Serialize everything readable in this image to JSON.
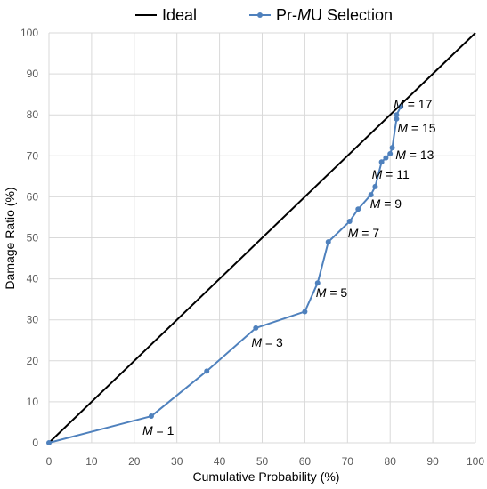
{
  "chart_data": {
    "type": "line",
    "xlabel": "Cumulative Probability (%)",
    "ylabel": "Damage Ratio (%)",
    "xlim": [
      0,
      100
    ],
    "ylim": [
      0,
      100
    ],
    "x_ticks": [
      "0",
      "10",
      "20",
      "30",
      "40",
      "50",
      "60",
      "70",
      "80",
      "90",
      "100"
    ],
    "y_ticks": [
      "0",
      "10",
      "20",
      "30",
      "40",
      "50",
      "60",
      "70",
      "80",
      "90",
      "100"
    ],
    "grid": true,
    "legend_position": "top",
    "series": [
      {
        "name": "Ideal",
        "color": "#000000",
        "markers": false,
        "points": [
          [
            0,
            0
          ],
          [
            100,
            100
          ]
        ]
      },
      {
        "name": "Pr-MU Selection",
        "color": "#4f81bd",
        "markers": true,
        "points": [
          [
            0,
            0
          ],
          [
            24,
            6.5
          ],
          [
            37,
            17.5
          ],
          [
            48.5,
            28
          ],
          [
            60,
            32
          ],
          [
            63,
            39
          ],
          [
            65.5,
            49
          ],
          [
            70.5,
            54
          ],
          [
            72.5,
            57
          ],
          [
            75.5,
            60.5
          ],
          [
            76.5,
            62.5
          ],
          [
            78,
            68.5
          ],
          [
            79,
            69.5
          ],
          [
            80,
            70.5
          ],
          [
            80.5,
            72
          ],
          [
            81.5,
            79
          ],
          [
            81.5,
            80
          ],
          [
            82.5,
            82
          ]
        ]
      }
    ],
    "legend": {
      "ideal_label": "Ideal",
      "series_label_prefix": "Pr-",
      "series_label_italic": "M",
      "series_label_suffix": "U Selection"
    },
    "annotations": [
      {
        "var": "M",
        "text": " = 1",
        "x": 24,
        "y": 6.5
      },
      {
        "var": "M",
        "text": " = 3",
        "x": 48.5,
        "y": 28
      },
      {
        "var": "M",
        "text": " = 5",
        "x": 63,
        "y": 39
      },
      {
        "var": "M",
        "text": " = 7",
        "x": 70.5,
        "y": 54
      },
      {
        "var": "M",
        "text": " = 9",
        "x": 75.5,
        "y": 60.5
      },
      {
        "var": "M",
        "text": " = 11",
        "x": 78,
        "y": 68.5
      },
      {
        "var": "M",
        "text": " = 13",
        "x": 80,
        "y": 70.5
      },
      {
        "var": "M",
        "text": " = 15",
        "x": 81.5,
        "y": 79
      },
      {
        "var": "M",
        "text": " = 17",
        "x": 82.5,
        "y": 82
      }
    ]
  }
}
